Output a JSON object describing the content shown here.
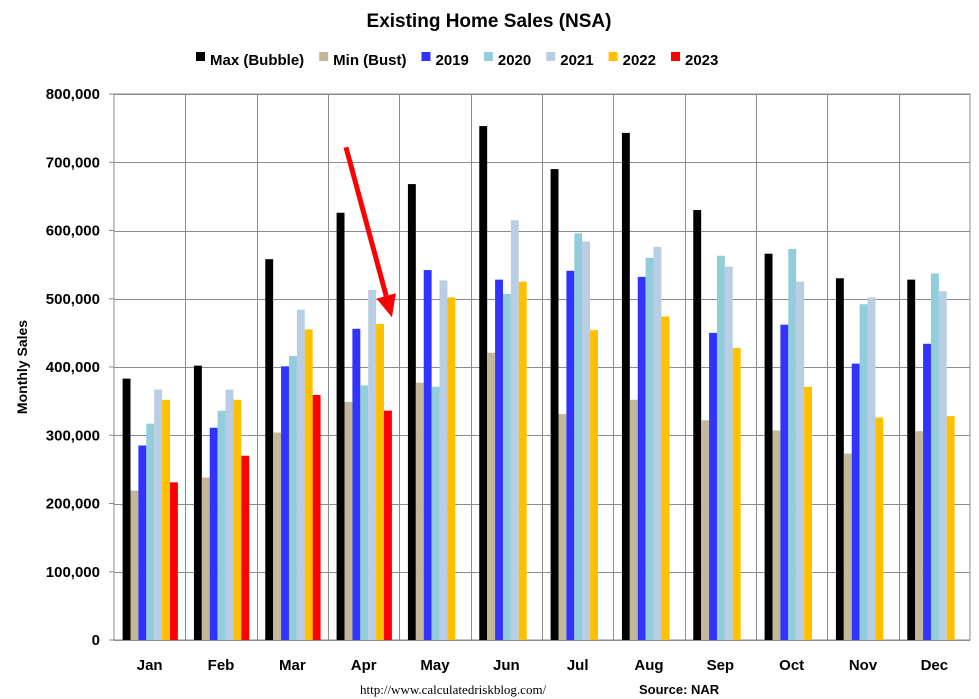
{
  "chart_data": {
    "type": "bar",
    "title": "Existing Home Sales (NSA)",
    "ylabel": "Monthly Sales",
    "xlabel": "",
    "ylim": [
      0,
      800000
    ],
    "yticks": [
      0,
      100000,
      200000,
      300000,
      400000,
      500000,
      600000,
      700000,
      800000
    ],
    "ytick_labels": [
      "0",
      "100,000",
      "200,000",
      "300,000",
      "400,000",
      "500,000",
      "600,000",
      "700,000",
      "800,000"
    ],
    "categories": [
      "Jan",
      "Feb",
      "Mar",
      "Apr",
      "May",
      "Jun",
      "Jul",
      "Aug",
      "Sep",
      "Oct",
      "Nov",
      "Dec"
    ],
    "grid": true,
    "legend_position": "top",
    "series": [
      {
        "name": "Max (Bubble)",
        "color": "#000000",
        "values": [
          383000,
          402000,
          558000,
          626000,
          668000,
          753000,
          690000,
          743000,
          630000,
          566000,
          530000,
          528000
        ]
      },
      {
        "name": "Min (Bust)",
        "color": "#c4b89a",
        "values": [
          219000,
          238000,
          304000,
          349000,
          377000,
          421000,
          331000,
          352000,
          322000,
          307000,
          273000,
          306000
        ]
      },
      {
        "name": "2019",
        "color": "#3333ff",
        "values": [
          285000,
          311000,
          401000,
          456000,
          542000,
          528000,
          541000,
          532000,
          450000,
          462000,
          405000,
          434000
        ]
      },
      {
        "name": "2020",
        "color": "#92cddc",
        "values": [
          317000,
          336000,
          416000,
          373000,
          371000,
          507000,
          596000,
          560000,
          563000,
          573000,
          492000,
          537000
        ]
      },
      {
        "name": "2021",
        "color": "#b9cde5",
        "values": [
          367000,
          367000,
          484000,
          513000,
          527000,
          615000,
          584000,
          576000,
          547000,
          525000,
          502000,
          511000
        ]
      },
      {
        "name": "2022",
        "color": "#ffc000",
        "values": [
          352000,
          352000,
          455000,
          463000,
          502000,
          525000,
          454000,
          474000,
          428000,
          371000,
          326000,
          328000
        ]
      },
      {
        "name": "2023",
        "color": "#ff0000",
        "values": [
          231000,
          270000,
          359000,
          336000,
          null,
          null,
          null,
          null,
          null,
          null,
          null,
          null
        ]
      }
    ],
    "annotation": {
      "type": "arrow",
      "color": "#ff0000",
      "target_category": "Apr",
      "target_series": "2023"
    }
  },
  "footer": {
    "url": "http://www.calculatedriskblog.com/",
    "source": "Source: NAR"
  }
}
